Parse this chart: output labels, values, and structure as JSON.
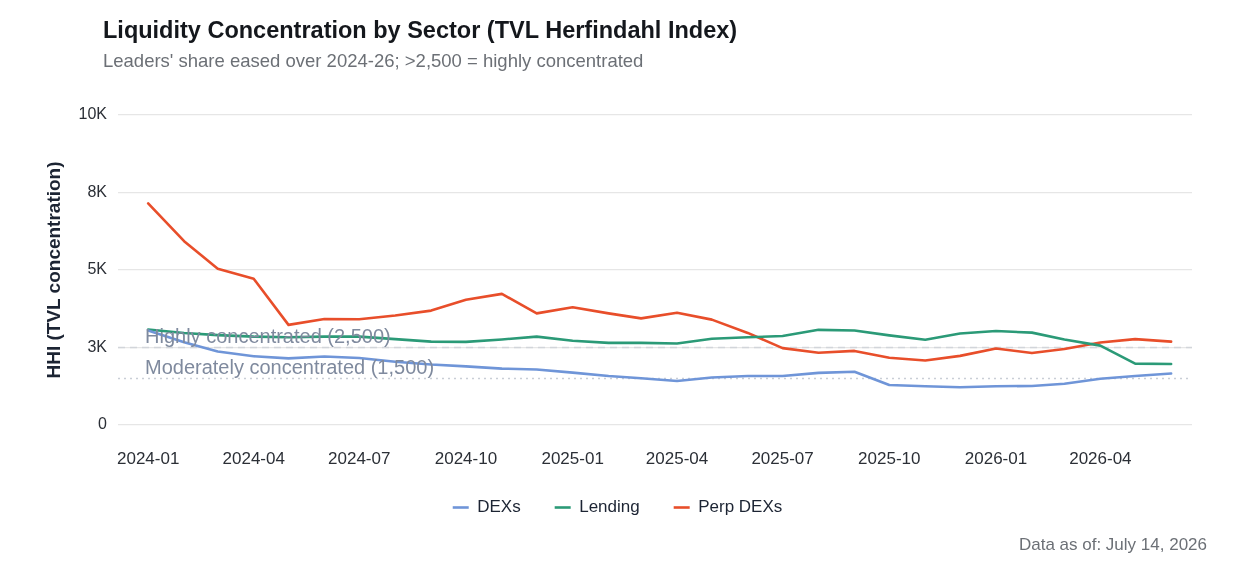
{
  "chart_data": {
    "type": "line",
    "title": "Liquidity Concentration by Sector (TVL Herfindahl Index)",
    "subtitle": "Leaders' share eased over 2024-26; >2,500 = highly concentrated",
    "ylabel": "HHI (TVL concentration)",
    "x": [
      "2024-01",
      "2024-02",
      "2024-03",
      "2024-04",
      "2024-05",
      "2024-06",
      "2024-07",
      "2024-08",
      "2024-09",
      "2024-10",
      "2024-11",
      "2024-12",
      "2025-01",
      "2025-02",
      "2025-03",
      "2025-04",
      "2025-05",
      "2025-06",
      "2025-07",
      "2025-08",
      "2025-09",
      "2025-10",
      "2025-11",
      "2025-12",
      "2026-01",
      "2026-02",
      "2026-03",
      "2026-04",
      "2026-05",
      "2026-06"
    ],
    "series": [
      {
        "name": "DEXs",
        "color": "#6f95d8",
        "values": [
          3050,
          2670,
          2370,
          2220,
          2150,
          2210,
          2160,
          2040,
          1950,
          1890,
          1820,
          1790,
          1690,
          1580,
          1510,
          1420,
          1530,
          1580,
          1580,
          1680,
          1720,
          1290,
          1250,
          1220,
          1250,
          1260,
          1330,
          1490,
          1580,
          1660
        ]
      },
      {
        "name": "Lending",
        "color": "#2b9a77",
        "values": [
          3080,
          2970,
          2900,
          2850,
          2830,
          2850,
          2850,
          2770,
          2690,
          2680,
          2760,
          2850,
          2720,
          2650,
          2650,
          2630,
          2780,
          2830,
          2870,
          3070,
          3050,
          2890,
          2750,
          2950,
          3030,
          2980,
          2760,
          2560,
          1980,
          1970
        ]
      },
      {
        "name": "Perp DEXs",
        "color": "#e84e2a",
        "values": [
          7150,
          5930,
          5040,
          4720,
          3230,
          3420,
          3410,
          3530,
          3690,
          4040,
          4230,
          3600,
          3800,
          3600,
          3440,
          3620,
          3400,
          2970,
          2480,
          2330,
          2390,
          2170,
          2080,
          2230,
          2470,
          2320,
          2450,
          2660,
          2770,
          2690
        ]
      }
    ],
    "xlim": [
      "2023-12-06",
      "2026-06-19"
    ],
    "xticks": [
      "2024-01",
      "2024-04",
      "2024-07",
      "2024-10",
      "2025-01",
      "2025-04",
      "2025-07",
      "2025-10",
      "2026-01",
      "2026-04"
    ],
    "ylim": [
      0,
      10000
    ],
    "yticks": [
      0,
      {
        "value": 2500,
        "label": "3K"
      },
      {
        "value": 5000,
        "label": "5K"
      },
      {
        "value": 7500,
        "label": "8K"
      },
      {
        "value": 10000,
        "label": "10K"
      }
    ],
    "ref_lines": [
      {
        "axis": "y",
        "value": 2500,
        "label": "Highly concentrated (2,500)",
        "color": "#d2d5da",
        "line_style": "dashed"
      },
      {
        "axis": "y",
        "value": 1500,
        "label": "Moderately concentrated (1,500)",
        "color": "#c9ced6",
        "line_style": "dotted"
      }
    ],
    "grid": "y",
    "legend": "bottom",
    "marker": "none",
    "line_style": "solid",
    "annotations": [
      "Data as of: July 14, 2026"
    ]
  }
}
